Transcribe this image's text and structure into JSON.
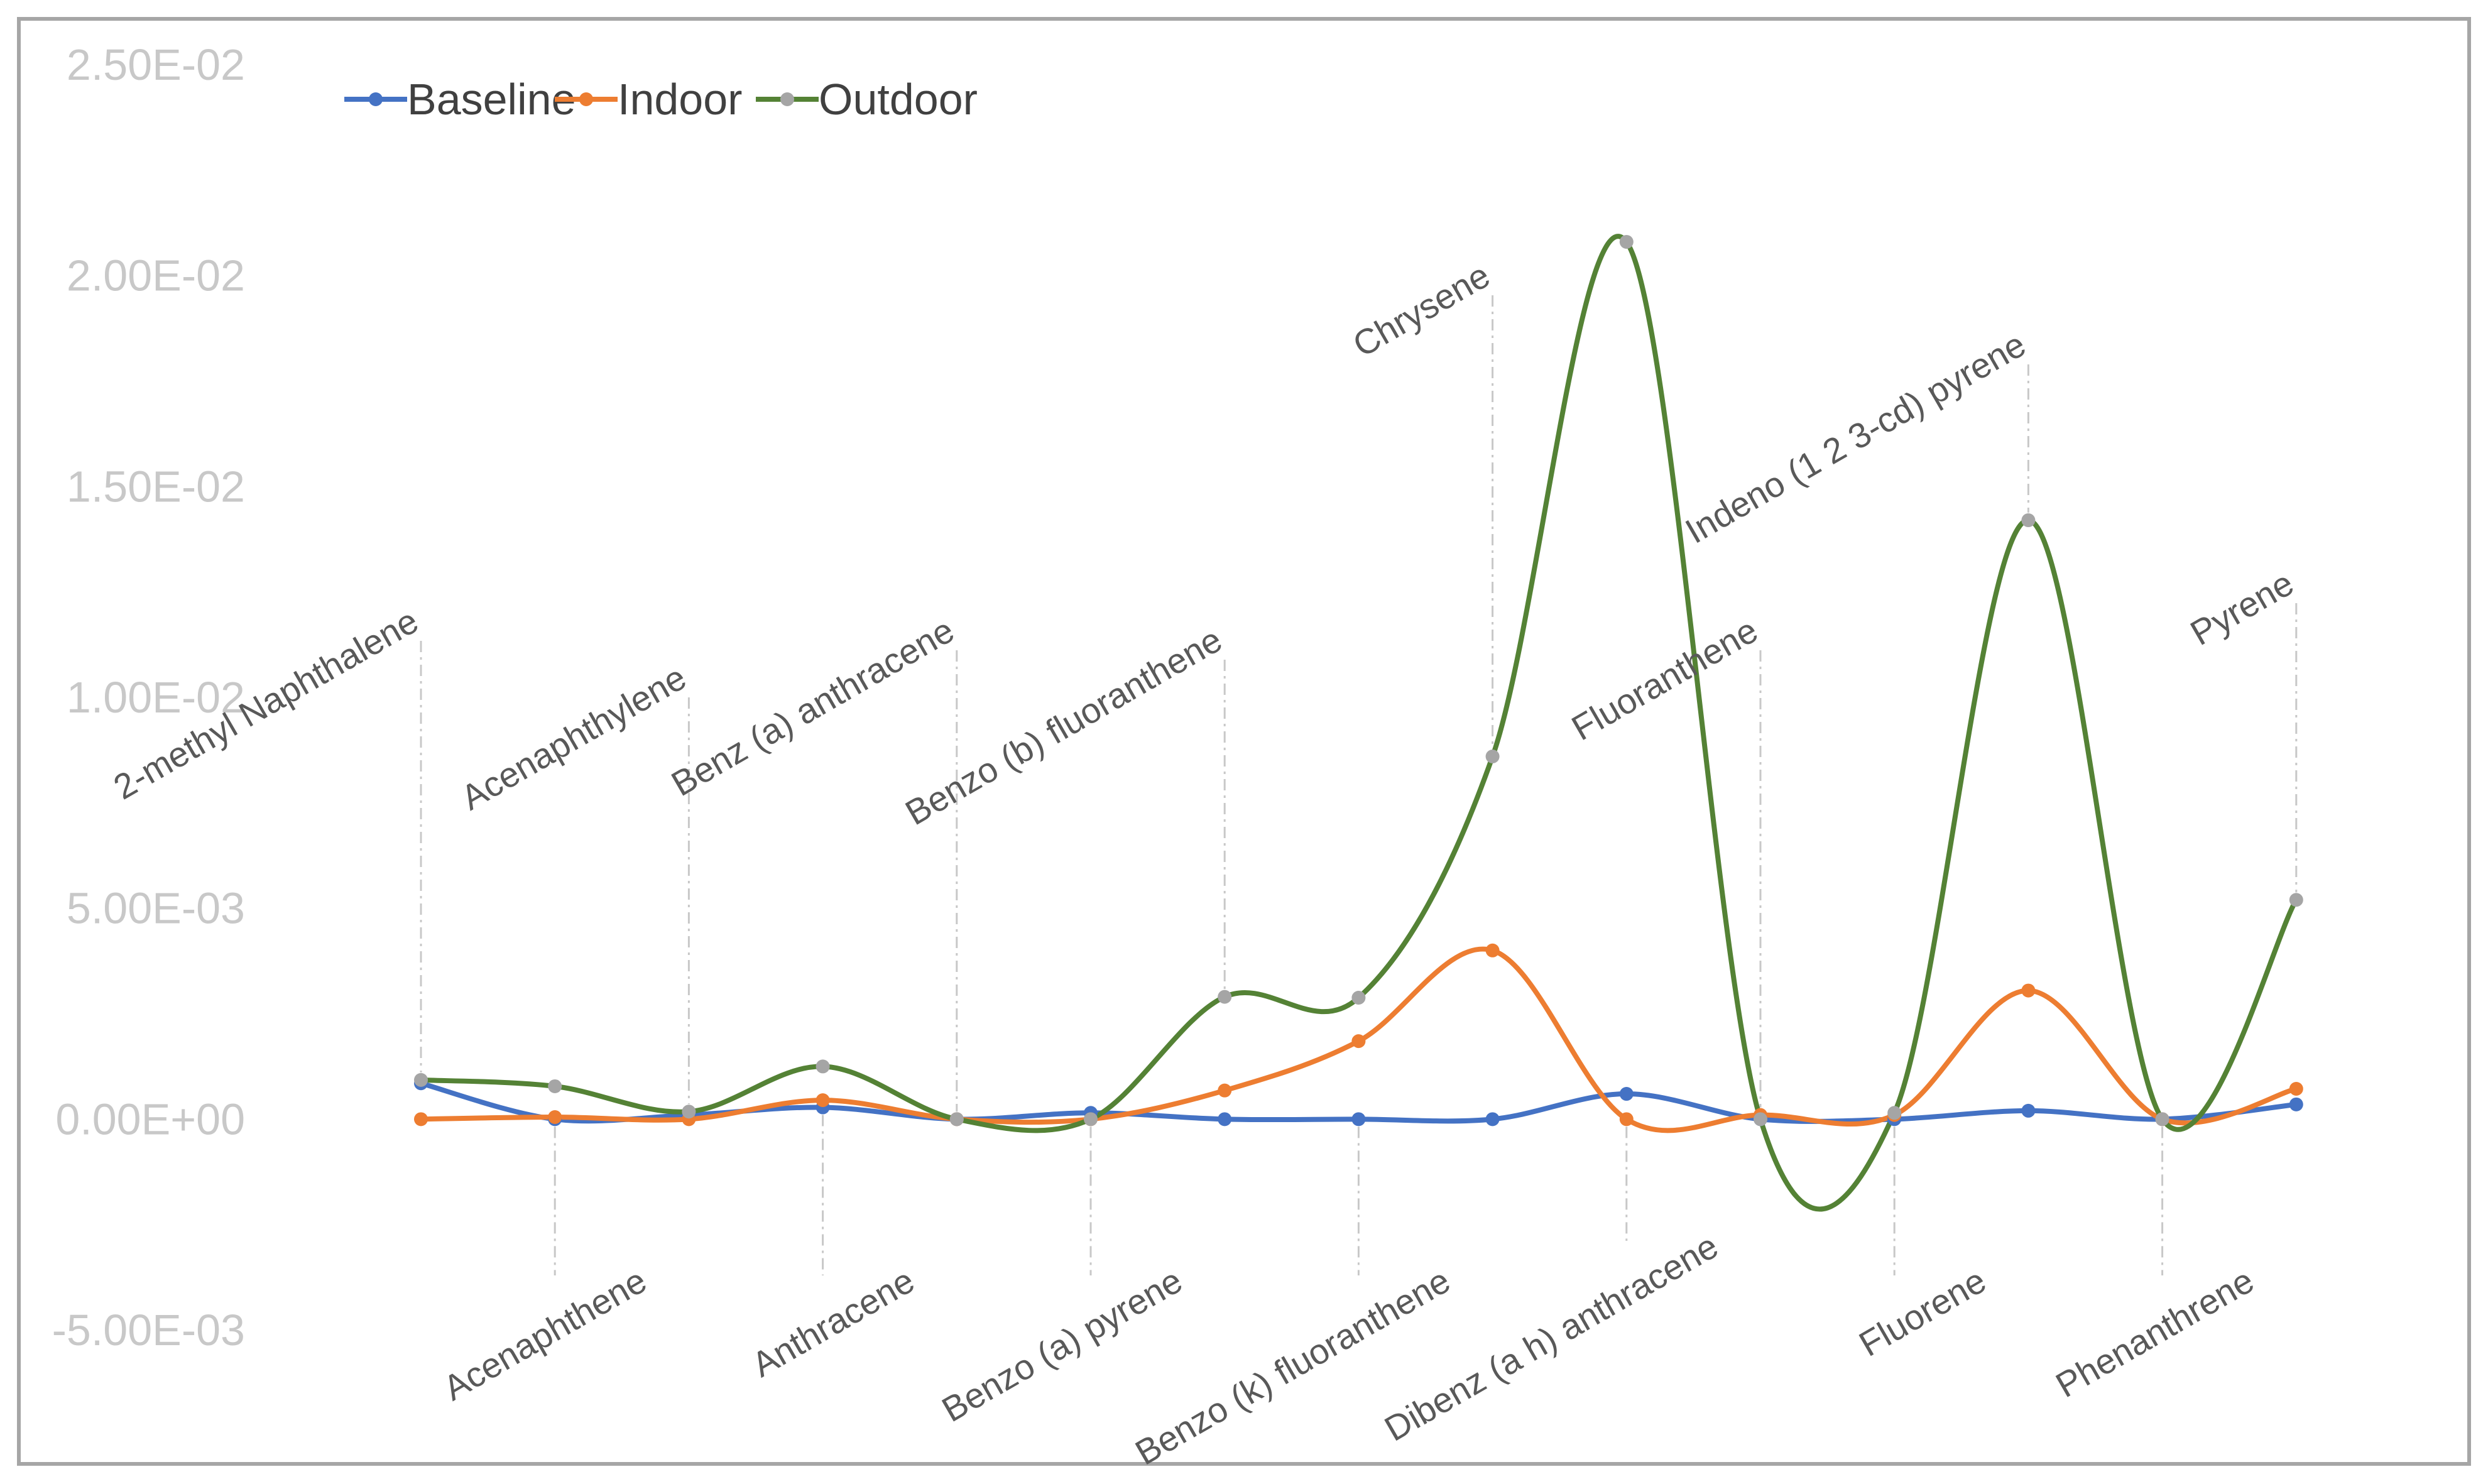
{
  "chart_data": {
    "type": "line",
    "title": "",
    "xlabel": "",
    "ylabel": "",
    "ylim": [
      -0.005,
      0.025
    ],
    "yticks": [
      {
        "value": 0.025,
        "label": "2.50E-02"
      },
      {
        "value": 0.02,
        "label": "2.00E-02"
      },
      {
        "value": 0.015,
        "label": "1.50E-02"
      },
      {
        "value": 0.01,
        "label": "1.00E-02"
      },
      {
        "value": 0.005,
        "label": "5.00E-03"
      },
      {
        "value": 0.0,
        "label": "0.00E+00"
      },
      {
        "value": -0.005,
        "label": "-5.00E-03"
      }
    ],
    "grid": false,
    "legend_position": "top-left",
    "smooth": true,
    "categories": [
      "2-methyl Naphthalene",
      "Acenaphthene",
      "Acenaphthylene",
      "Anthracene",
      "Benz (a) anthracene",
      "Benzo (a) pyrene",
      "Benzo (b) fluoranthene",
      "Benzo (k) fluoranthene",
      "Chrysene",
      "Dibenz (a h) anthracene",
      "Fluoranthene",
      "Fluorene",
      "Indeno (1 2 3-cd) pyrene",
      "Phenanthrene",
      "Pyrene"
    ],
    "series": [
      {
        "name": "Baseline",
        "color": "#4472c4",
        "values": [
          0.00085,
          0.0,
          0.0001,
          0.00028,
          0.0,
          0.00015,
          0.0,
          0.0,
          0.0,
          0.0006,
          0.0,
          0.0,
          0.0002,
          0.0,
          0.00035
        ]
      },
      {
        "name": "Indoor",
        "color": "#ed7d31",
        "values": [
          0.0,
          5e-05,
          0.0,
          0.00045,
          0.0,
          0.0,
          0.00068,
          0.00185,
          0.004,
          0.0,
          0.0001,
          0.0001,
          0.00305,
          0.0,
          0.00072
        ]
      },
      {
        "name": "Outdoor",
        "color": "#548235",
        "marker_color": "#a5a5a5",
        "values": [
          0.00093,
          0.00078,
          0.00018,
          0.00125,
          0.0,
          0.0,
          0.0029,
          0.00288,
          0.0086,
          0.0208,
          0.0,
          0.00015,
          0.0142,
          0.0,
          0.0052
        ]
      }
    ]
  }
}
